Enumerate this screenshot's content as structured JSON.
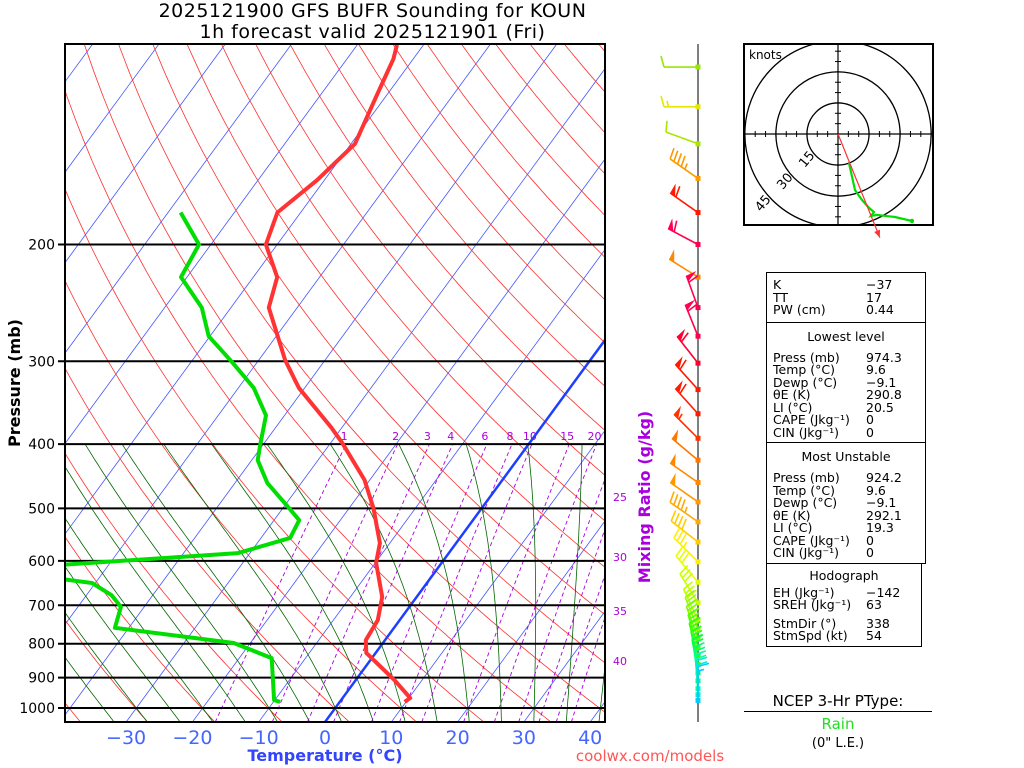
{
  "header": {
    "title_line1": "2025121900 GFS BUFR Sounding for KOUN",
    "title_line2": "1h forecast valid 2025121901 (Fri)"
  },
  "credit": "coolwx.com/models",
  "colors": {
    "temperature": "#ff3333",
    "dewpoint": "#00dd00",
    "isotherm": "#4455ff",
    "dry_adiabat": "#ff3030",
    "moist_adiabat": "#006600",
    "mixing_ratio": "#aa00dd",
    "credit": "#ff5555",
    "axis_label": "#3344ff"
  },
  "chart_data": {
    "type": "skewt",
    "title": "2025121900 GFS BUFR Sounding for KOUN",
    "subtitle": "1h forecast valid 2025121901 (Fri)",
    "xlabel": "Temperature (°C)",
    "ylabel": "Pressure (mb)",
    "mixing_ratio_label": "Mixing Ratio (g/kg)",
    "pressure_range_mb": [
      1050,
      100
    ],
    "pressure_ticks": [
      200,
      300,
      400,
      500,
      600,
      700,
      800,
      900,
      1000
    ],
    "pressure_tick_labels": [
      "200",
      "300",
      "400",
      "500",
      "600",
      "700",
      "800",
      "900",
      "1000"
    ],
    "temperature_ticks": [
      -30,
      -20,
      -10,
      0,
      10,
      20,
      30,
      40
    ],
    "temperature_tick_labels": [
      "−30",
      "−20",
      "−10",
      "0",
      "10",
      "20",
      "30",
      "40"
    ],
    "mixing_ratio_top": [
      1,
      2,
      3,
      4,
      6,
      8,
      10,
      15,
      20
    ],
    "mixing_ratio_top_labels": [
      "1",
      "2",
      "3",
      "4",
      "6",
      "8",
      "10",
      "15",
      "20"
    ],
    "mixing_ratio_side": [
      25,
      30,
      35,
      40
    ],
    "mixing_ratio_side_labels": [
      "25",
      "30",
      "35",
      "40"
    ],
    "temperature_profile": [
      [
        979,
        9.8
      ],
      [
        966,
        10.2
      ],
      [
        907,
        5.8
      ],
      [
        826,
        -1.4
      ],
      [
        790,
        -2.9
      ],
      [
        737,
        -3.3
      ],
      [
        680,
        -5.2
      ],
      [
        604,
        -9.9
      ],
      [
        564,
        -11.5
      ],
      [
        500,
        -16.3
      ],
      [
        453,
        -20.8
      ],
      [
        398,
        -28.3
      ],
      [
        377,
        -31.7
      ],
      [
        329,
        -40.9
      ],
      [
        299,
        -46.0
      ],
      [
        249,
        -54.3
      ],
      [
        224,
        -56.4
      ],
      [
        200,
        -61.7
      ],
      [
        179,
        -63.5
      ],
      [
        160,
        -61.1
      ],
      [
        141,
        -59.4
      ],
      [
        120,
        -61.4
      ],
      [
        105,
        -63.0
      ],
      [
        100,
        -64.0
      ]
    ],
    "dewpoint_profile": [
      [
        979,
        -9.0
      ],
      [
        973,
        -10.1
      ],
      [
        841,
        -15.1
      ],
      [
        798,
        -22.5
      ],
      [
        757,
        -42.1
      ],
      [
        704,
        -43.5
      ],
      [
        676,
        -46.2
      ],
      [
        648,
        -50.5
      ],
      [
        628,
        -62.0
      ],
      [
        613,
        -62.0
      ],
      [
        584,
        -31.8
      ],
      [
        554,
        -25.6
      ],
      [
        521,
        -26.2
      ],
      [
        500,
        -29.0
      ],
      [
        458,
        -35.1
      ],
      [
        423,
        -39.1
      ],
      [
        398,
        -40.6
      ],
      [
        362,
        -42.8
      ],
      [
        329,
        -47.7
      ],
      [
        300,
        -54.0
      ],
      [
        275,
        -60.2
      ],
      [
        249,
        -64.4
      ],
      [
        224,
        -70.9
      ],
      [
        200,
        -71.8
      ],
      [
        179,
        -78.1
      ]
    ],
    "winds": [
      {
        "p": 108,
        "dir": 270,
        "spd": 10,
        "color": "#99e600"
      },
      {
        "p": 124,
        "dir": 270,
        "spd": 15,
        "color": "#e6e600"
      },
      {
        "p": 141,
        "dir": 290,
        "spd": 10,
        "color": "#aae600"
      },
      {
        "p": 159,
        "dir": 305,
        "spd": 45,
        "color": "#ff9900"
      },
      {
        "p": 179,
        "dir": 305,
        "spd": 60,
        "color": "#ff1a00"
      },
      {
        "p": 200,
        "dir": 298,
        "spd": 60,
        "color": "#ff0050"
      },
      {
        "p": 224,
        "dir": 302,
        "spd": 50,
        "color": "#ff8800"
      },
      {
        "p": 249,
        "dir": 340,
        "spd": 60,
        "color": "#ff0050"
      },
      {
        "p": 275,
        "dir": 338,
        "spd": 60,
        "color": "#ff0050"
      },
      {
        "p": 302,
        "dir": 322,
        "spd": 60,
        "color": "#ff0030"
      },
      {
        "p": 331,
        "dir": 318,
        "spd": 60,
        "color": "#ff1a00"
      },
      {
        "p": 360,
        "dir": 318,
        "spd": 60,
        "color": "#ff1a00"
      },
      {
        "p": 392,
        "dir": 315,
        "spd": 55,
        "color": "#ff3300"
      },
      {
        "p": 423,
        "dir": 310,
        "spd": 50,
        "color": "#ff7700"
      },
      {
        "p": 457,
        "dir": 305,
        "spd": 50,
        "color": "#ff8800"
      },
      {
        "p": 489,
        "dir": 305,
        "spd": 50,
        "color": "#ff9900"
      },
      {
        "p": 524,
        "dir": 305,
        "spd": 45,
        "color": "#ffaa00"
      },
      {
        "p": 562,
        "dir": 308,
        "spd": 40,
        "color": "#ffcc00"
      },
      {
        "p": 602,
        "dir": 315,
        "spd": 35,
        "color": "#ffee00"
      },
      {
        "p": 646,
        "dir": 320,
        "spd": 30,
        "color": "#e6ff00"
      },
      {
        "p": 694,
        "dir": 328,
        "spd": 30,
        "color": "#ccff00"
      },
      {
        "p": 737,
        "dir": 335,
        "spd": 30,
        "color": "#bbff00"
      },
      {
        "p": 760,
        "dir": 338,
        "spd": 30,
        "color": "#99ff00"
      },
      {
        "p": 785,
        "dir": 340,
        "spd": 30,
        "color": "#77ff00"
      },
      {
        "p": 810,
        "dir": 343,
        "spd": 30,
        "color": "#55ff00"
      },
      {
        "p": 835,
        "dir": 345,
        "spd": 30,
        "color": "#33ff00"
      },
      {
        "p": 860,
        "dir": 348,
        "spd": 30,
        "color": "#22ff22"
      },
      {
        "p": 885,
        "dir": 350,
        "spd": 25,
        "color": "#00ff44"
      },
      {
        "p": 910,
        "dir": 353,
        "spd": 25,
        "color": "#00ff77"
      },
      {
        "p": 935,
        "dir": 355,
        "spd": 20,
        "color": "#00ffaa"
      },
      {
        "p": 955,
        "dir": 357,
        "spd": 20,
        "color": "#00eecc"
      },
      {
        "p": 974,
        "dir": 0,
        "spd": 15,
        "color": "#00ccff"
      }
    ],
    "hodograph": {
      "units_label": "knots",
      "rings_kt": [
        15,
        30,
        45
      ],
      "ring_labels": [
        "15",
        "30",
        "45"
      ],
      "trace_uv_kt": [
        [
          5.3,
          -14.0
        ],
        [
          8.2,
          -27.1
        ],
        [
          11.6,
          -31.9
        ],
        [
          15.0,
          -35.7
        ],
        [
          17.4,
          -37.7
        ],
        [
          15.9,
          -39.6
        ],
        [
          18.8,
          -39.1
        ],
        [
          27.5,
          -40.1
        ],
        [
          35.7,
          -42.0
        ]
      ],
      "storm_motion": {
        "dir": 338,
        "spd": 54
      }
    }
  },
  "indices": {
    "general": [
      {
        "label": "K",
        "value": "−37"
      },
      {
        "label": "TT",
        "value": "17"
      },
      {
        "label": "PW (cm)",
        "value": "0.44"
      }
    ],
    "lowest": {
      "title": "Lowest level",
      "rows": [
        {
          "label": "Press (mb)",
          "value": "974.3"
        },
        {
          "label": "Temp (°C)",
          "value": "9.6"
        },
        {
          "label": "Dewp (°C)",
          "value": "−9.1"
        },
        {
          "label": "θE (K)",
          "value": "290.8"
        },
        {
          "label": "LI (°C)",
          "value": "20.5"
        },
        {
          "label": "CAPE (Jkg⁻¹)",
          "value": "0"
        },
        {
          "label": "CIN (Jkg⁻¹)",
          "value": "0"
        }
      ]
    },
    "unstable": {
      "title": "Most Unstable",
      "rows": [
        {
          "label": "Press (mb)",
          "value": "924.2"
        },
        {
          "label": "Temp (°C)",
          "value": "9.6"
        },
        {
          "label": "Dewp (°C)",
          "value": "−9.1"
        },
        {
          "label": "θE (K)",
          "value": "292.1"
        },
        {
          "label": "LI (°C)",
          "value": "19.3"
        },
        {
          "label": "CAPE (Jkg⁻¹)",
          "value": "0"
        },
        {
          "label": "CIN (Jkg⁻¹)",
          "value": "0"
        }
      ]
    },
    "hodo": {
      "title": "Hodograph",
      "rows": [
        {
          "label": "EH (Jkg⁻¹)",
          "value": "−142"
        },
        {
          "label": "SREH (Jkg⁻¹)",
          "value": "63"
        }
      ],
      "rows2": [
        {
          "label": "StmDir (°)",
          "value": "338"
        },
        {
          "label": "StmSpd (kt)",
          "value": "54"
        }
      ]
    }
  },
  "ptype": {
    "heading": "NCEP 3-Hr PType:",
    "value": "Rain",
    "liquid_equiv": "(0\" L.E.)"
  }
}
